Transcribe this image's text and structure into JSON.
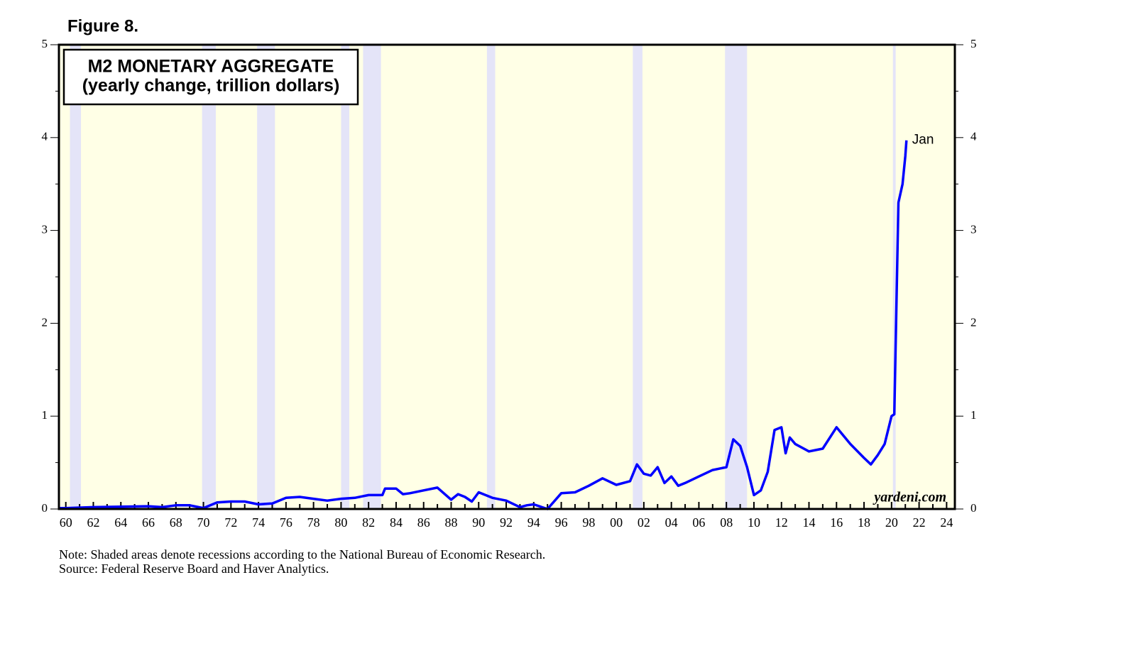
{
  "chart_data": {
    "type": "line",
    "figure_label": "Figure 8.",
    "title": "M2 MONETARY AGGREGATE",
    "subtitle": "(yearly change, trillion dollars)",
    "annotation": "Jan",
    "watermark": "yardeni.com",
    "notes": [
      "Note: Shaded areas denote recessions according to the National Bureau of Economic Research.",
      "Source: Federal Reserve Board and Haver Analytics."
    ],
    "background_color": "#ffffe6",
    "shade_color": "#e4e4f8",
    "shaded_periods": [
      [
        1960.3,
        1961.1
      ],
      [
        1969.9,
        1970.9
      ],
      [
        1973.9,
        1975.2
      ],
      [
        1980.0,
        1980.6
      ],
      [
        1981.6,
        1982.9
      ],
      [
        1990.6,
        1991.2
      ],
      [
        2001.2,
        2001.9
      ],
      [
        2007.9,
        2009.5
      ],
      [
        2020.1,
        2020.3
      ]
    ],
    "x": [
      1959.5,
      1960,
      1962,
      1964,
      1966,
      1967,
      1968,
      1969,
      1970,
      1971,
      1972,
      1973,
      1974,
      1975,
      1976,
      1977,
      1978,
      1979,
      1980,
      1981,
      1982,
      1983,
      1983.2,
      1984,
      1984.5,
      1985,
      1986,
      1987,
      1988,
      1988.5,
      1989,
      1989.5,
      1990,
      1991,
      1992,
      1993,
      1993.5,
      1994,
      1995,
      1996,
      1997,
      1998,
      1999,
      2000,
      2001,
      2001.5,
      2002,
      2002.5,
      2003,
      2003.5,
      2004,
      2004.5,
      2005,
      2006,
      2007,
      2008,
      2008.5,
      2009,
      2009.5,
      2010,
      2010.5,
      2011,
      2011.5,
      2012,
      2012.3,
      2012.6,
      2013,
      2014,
      2015,
      2016,
      2017,
      2018,
      2018.5,
      2019,
      2019.5,
      2020,
      2020.2,
      2020.5,
      2020.8,
      2021,
      2021.08
    ],
    "series": [
      {
        "name": "M2",
        "color": "#0000ff",
        "values": [
          0.01,
          0.01,
          0.02,
          0.025,
          0.03,
          0.02,
          0.04,
          0.04,
          0.01,
          0.07,
          0.08,
          0.08,
          0.05,
          0.06,
          0.12,
          0.13,
          0.11,
          0.09,
          0.11,
          0.12,
          0.15,
          0.15,
          0.22,
          0.22,
          0.16,
          0.17,
          0.2,
          0.23,
          0.1,
          0.16,
          0.13,
          0.08,
          0.18,
          0.12,
          0.09,
          0.02,
          0.04,
          0.05,
          0.0,
          0.17,
          0.18,
          0.25,
          0.33,
          0.26,
          0.3,
          0.48,
          0.38,
          0.36,
          0.45,
          0.28,
          0.35,
          0.25,
          0.28,
          0.35,
          0.42,
          0.45,
          0.75,
          0.68,
          0.45,
          0.15,
          0.2,
          0.4,
          0.85,
          0.88,
          0.6,
          0.77,
          0.7,
          0.62,
          0.65,
          0.88,
          0.7,
          0.55,
          0.48,
          0.58,
          0.7,
          1.0,
          1.02,
          3.3,
          3.5,
          3.8,
          3.97
        ]
      }
    ],
    "xlim": [
      1959.5,
      2024.6
    ],
    "xticks": [
      {
        "value": 1960,
        "label": "60"
      },
      {
        "value": 1962,
        "label": "62"
      },
      {
        "value": 1964,
        "label": "64"
      },
      {
        "value": 1966,
        "label": "66"
      },
      {
        "value": 1968,
        "label": "68"
      },
      {
        "value": 1970,
        "label": "70"
      },
      {
        "value": 1972,
        "label": "72"
      },
      {
        "value": 1974,
        "label": "74"
      },
      {
        "value": 1976,
        "label": "76"
      },
      {
        "value": 1978,
        "label": "78"
      },
      {
        "value": 1980,
        "label": "80"
      },
      {
        "value": 1982,
        "label": "82"
      },
      {
        "value": 1984,
        "label": "84"
      },
      {
        "value": 1986,
        "label": "86"
      },
      {
        "value": 1988,
        "label": "88"
      },
      {
        "value": 1990,
        "label": "90"
      },
      {
        "value": 1992,
        "label": "92"
      },
      {
        "value": 1994,
        "label": "94"
      },
      {
        "value": 1996,
        "label": "96"
      },
      {
        "value": 1998,
        "label": "98"
      },
      {
        "value": 2000,
        "label": "00"
      },
      {
        "value": 2002,
        "label": "02"
      },
      {
        "value": 2004,
        "label": "04"
      },
      {
        "value": 2006,
        "label": "06"
      },
      {
        "value": 2008,
        "label": "08"
      },
      {
        "value": 2010,
        "label": "10"
      },
      {
        "value": 2012,
        "label": "12"
      },
      {
        "value": 2014,
        "label": "14"
      },
      {
        "value": 2016,
        "label": "16"
      },
      {
        "value": 2018,
        "label": "18"
      },
      {
        "value": 2020,
        "label": "20"
      },
      {
        "value": 2022,
        "label": "22"
      },
      {
        "value": 2024,
        "label": "24"
      }
    ],
    "xticks_minor": [
      1961,
      1963,
      1965,
      1967,
      1969,
      1971,
      1973,
      1975,
      1977,
      1979,
      1981,
      1983,
      1985,
      1987,
      1989,
      1991,
      1993,
      1995,
      1997,
      1999,
      2001,
      2003,
      2005,
      2007,
      2009,
      2011,
      2013,
      2015,
      2017,
      2019,
      2021,
      2023
    ],
    "ylim": [
      0,
      5
    ],
    "yticks": [
      0,
      1,
      2,
      3,
      4,
      5
    ],
    "yticks_minor": [
      0.5,
      1.5,
      2.5,
      3.5,
      4.5
    ],
    "y2lim": [
      0,
      5
    ],
    "y2ticks": [
      0,
      1,
      2,
      3,
      4,
      5
    ]
  }
}
